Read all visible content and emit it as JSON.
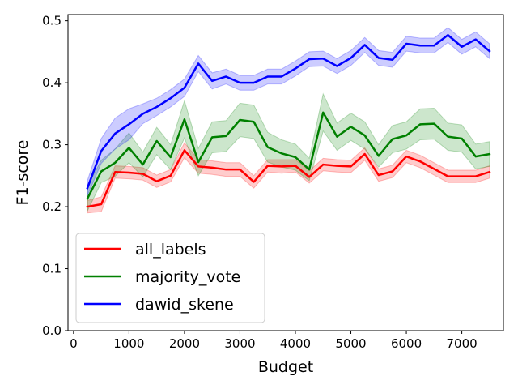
{
  "chart_data": {
    "type": "line",
    "title": "",
    "xlabel": "Budget",
    "ylabel": "F1-score",
    "xlim": [
      -100,
      7750
    ],
    "ylim": [
      0.0,
      0.51
    ],
    "xticks": [
      0,
      1000,
      2000,
      3000,
      4000,
      5000,
      6000,
      7000
    ],
    "yticks": [
      0.0,
      0.1,
      0.2,
      0.3,
      0.4,
      0.5
    ],
    "xtick_labels": [
      "0",
      "1000",
      "2000",
      "3000",
      "4000",
      "5000",
      "6000",
      "7000"
    ],
    "ytick_labels": [
      "0.0",
      "0.1",
      "0.2",
      "0.3",
      "0.4",
      "0.5"
    ],
    "grid": false,
    "legend_position": "lower-left",
    "x": [
      250,
      500,
      750,
      1000,
      1250,
      1500,
      1750,
      2000,
      2250,
      2500,
      2750,
      3000,
      3250,
      3500,
      3750,
      4000,
      4250,
      4500,
      4750,
      5000,
      5250,
      5500,
      5750,
      6000,
      6250,
      6500,
      6750,
      7000,
      7250,
      7500
    ],
    "series": [
      {
        "name": "all_labels",
        "color": "#ff0000",
        "values": [
          0.2,
          0.204,
          0.256,
          0.255,
          0.253,
          0.241,
          0.25,
          0.291,
          0.265,
          0.263,
          0.26,
          0.26,
          0.24,
          0.266,
          0.265,
          0.266,
          0.248,
          0.268,
          0.266,
          0.265,
          0.285,
          0.251,
          0.257,
          0.281,
          0.273,
          0.261,
          0.249,
          0.249,
          0.249,
          0.256
        ],
        "band": [
          0.01,
          0.012,
          0.01,
          0.01,
          0.01,
          0.01,
          0.01,
          0.012,
          0.011,
          0.011,
          0.011,
          0.011,
          0.01,
          0.01,
          0.011,
          0.01,
          0.01,
          0.01,
          0.01,
          0.01,
          0.01,
          0.01,
          0.01,
          0.01,
          0.01,
          0.01,
          0.01,
          0.01,
          0.01,
          0.01
        ]
      },
      {
        "name": "majority_vote",
        "color": "#008000",
        "values": [
          0.213,
          0.257,
          0.271,
          0.295,
          0.268,
          0.306,
          0.28,
          0.341,
          0.272,
          0.312,
          0.314,
          0.34,
          0.337,
          0.296,
          0.286,
          0.28,
          0.26,
          0.352,
          0.313,
          0.329,
          0.315,
          0.282,
          0.309,
          0.315,
          0.333,
          0.334,
          0.313,
          0.31,
          0.281,
          0.285
        ],
        "band": [
          0.02,
          0.018,
          0.022,
          0.024,
          0.02,
          0.022,
          0.02,
          0.03,
          0.022,
          0.025,
          0.025,
          0.027,
          0.027,
          0.024,
          0.022,
          0.021,
          0.018,
          0.03,
          0.022,
          0.022,
          0.022,
          0.018,
          0.022,
          0.022,
          0.025,
          0.025,
          0.022,
          0.022,
          0.02,
          0.02
        ]
      },
      {
        "name": "dawid_skene",
        "color": "#0000ff",
        "values": [
          0.23,
          0.29,
          0.318,
          0.333,
          0.35,
          0.361,
          0.375,
          0.392,
          0.431,
          0.403,
          0.41,
          0.4,
          0.4,
          0.41,
          0.41,
          0.423,
          0.438,
          0.439,
          0.427,
          0.44,
          0.461,
          0.44,
          0.437,
          0.463,
          0.46,
          0.46,
          0.477,
          0.458,
          0.47,
          0.451
        ],
        "band": [
          0.012,
          0.02,
          0.025,
          0.025,
          0.016,
          0.014,
          0.014,
          0.014,
          0.013,
          0.013,
          0.012,
          0.012,
          0.012,
          0.012,
          0.012,
          0.012,
          0.012,
          0.012,
          0.012,
          0.012,
          0.012,
          0.012,
          0.012,
          0.012,
          0.012,
          0.012,
          0.012,
          0.012,
          0.012,
          0.012
        ]
      }
    ]
  }
}
